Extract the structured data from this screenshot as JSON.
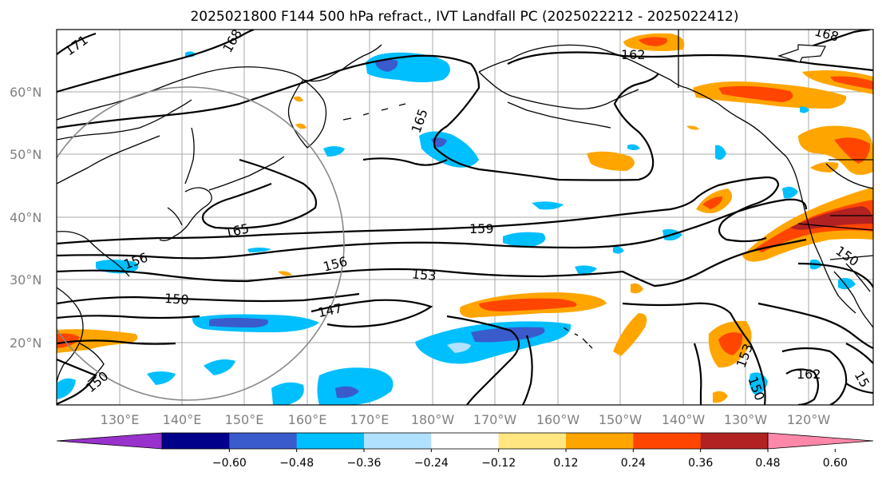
{
  "title": "2025021800 F144 500 hPa refract., IVT Landfall PC (2025022212 - 2025022412)",
  "lat_labels": [
    "60°N",
    "50°N",
    "40°N",
    "30°N",
    "20°N"
  ],
  "lon_labels": [
    "130°E",
    "140°E",
    "150°E",
    "160°E",
    "170°E",
    "180°W",
    "170°W",
    "160°W",
    "150°W",
    "140°W",
    "130°W",
    "120°W"
  ],
  "colorbar": {
    "ticks": [
      "−0.60",
      "−0.48",
      "−0.36",
      "−0.24",
      "−0.12",
      "0.12",
      "0.24",
      "0.36",
      "0.48",
      "0.60"
    ],
    "colors": [
      "#9932cc",
      "#00008b",
      "#3a5bcc",
      "#00bfff",
      "#b0e2ff",
      "#ffffff",
      "#ffe680",
      "#ffa500",
      "#ff4500",
      "#b22222",
      "#ff88aa"
    ]
  },
  "contour_labels": {
    "c171": "171",
    "c168a": "168",
    "c168b": "168",
    "c165a": "165",
    "c165b": "165",
    "c162a": "162",
    "c162b": "162",
    "c159a": "159",
    "c156a": "156",
    "c156b": "156",
    "c153a": "153",
    "c153b": "153",
    "c150a": "150",
    "c150b": "150",
    "c150c": "150",
    "c147": "147",
    "c15": "15"
  }
}
